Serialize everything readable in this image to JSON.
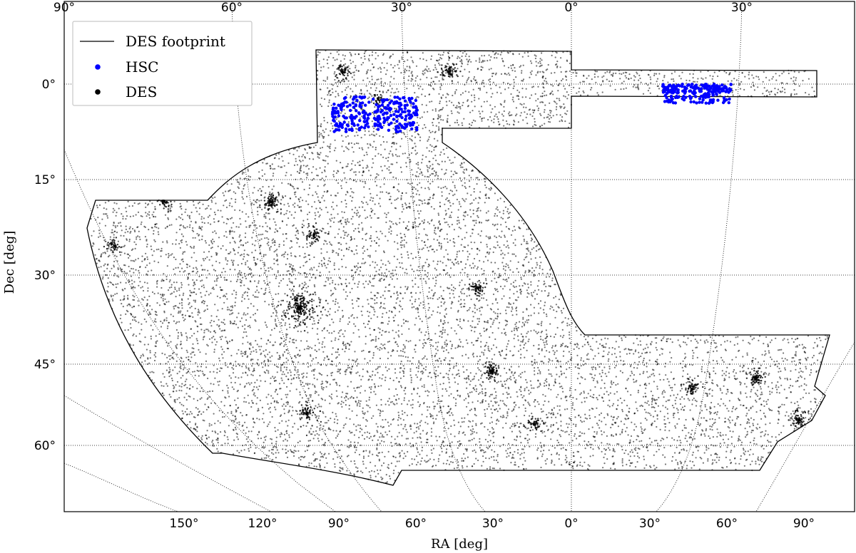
{
  "chart_data": {
    "type": "scatter",
    "xlabel": "RA [deg]",
    "ylabel": "Dec [deg]",
    "top_tick_labels": [
      "90°",
      "60°",
      "30°",
      "0°",
      "30°"
    ],
    "bottom_tick_labels": [
      "150°",
      "120°",
      "90°",
      "60°",
      "30°",
      "0°",
      "30°",
      "60°",
      "90°"
    ],
    "dec_tick_labels": [
      "0°",
      "15°",
      "30°",
      "45°",
      "60°"
    ],
    "dec_values": [
      0,
      -15,
      -30,
      -45,
      -60
    ],
    "grid": true,
    "legend_position": "top-left",
    "legend": [
      {
        "label": "DES footprint",
        "kind": "line",
        "color": "#000000"
      },
      {
        "label": "HSC",
        "kind": "marker",
        "color": "#0000ff"
      },
      {
        "label": "DES",
        "kind": "marker",
        "color": "#000000"
      }
    ],
    "series": [
      {
        "name": "HSC",
        "color": "#0000ff",
        "regions": [
          {
            "ra_range": [
              -42,
              -27
            ],
            "dec_range": [
              -7.5,
              -2.0
            ],
            "n": 260
          },
          {
            "ra_range": [
              16,
              28
            ],
            "dec_range": [
              -1.5,
              3.0
            ],
            "n": 200
          }
        ]
      },
      {
        "name": "DES",
        "color": "#000000",
        "density": "dense, clustered"
      }
    ]
  }
}
